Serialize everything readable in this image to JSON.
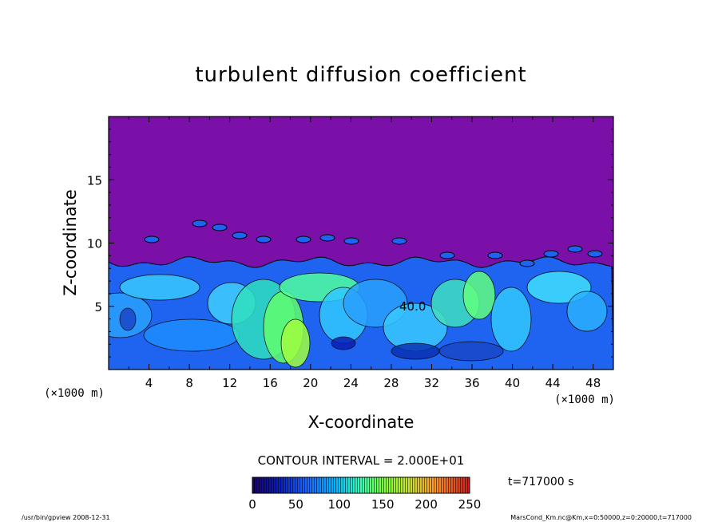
{
  "chart_data": {
    "type": "heatmap",
    "title": "turbulent diffusion coefficient",
    "xlabel": "X-coordinate",
    "ylabel": "Z-coordinate",
    "x_unit": "(×1000 m)",
    "y_unit": "(×1000 m)",
    "xlim": [
      0,
      50
    ],
    "ylim": [
      0,
      20
    ],
    "x_ticks": [
      4,
      8,
      12,
      16,
      20,
      24,
      28,
      32,
      36,
      40,
      44,
      48
    ],
    "y_ticks": [
      5,
      10,
      15
    ],
    "colorbar": {
      "range": [
        0,
        250
      ],
      "ticks": [
        0,
        50,
        100,
        150,
        200,
        250
      ]
    },
    "contour_interval_label": "CONTOUR INTERVAL = 2.000E+01",
    "contour_label": "40.0",
    "time_label": "t=717000 s",
    "background_color": "#7a10a8",
    "layer_top_km": 8.5
  },
  "footer": {
    "left": "/usr/bin/gpview   2008-12-31",
    "right": "MarsCond_Km.nc@Km,x=0:50000,z=0:20000,t=717000"
  }
}
